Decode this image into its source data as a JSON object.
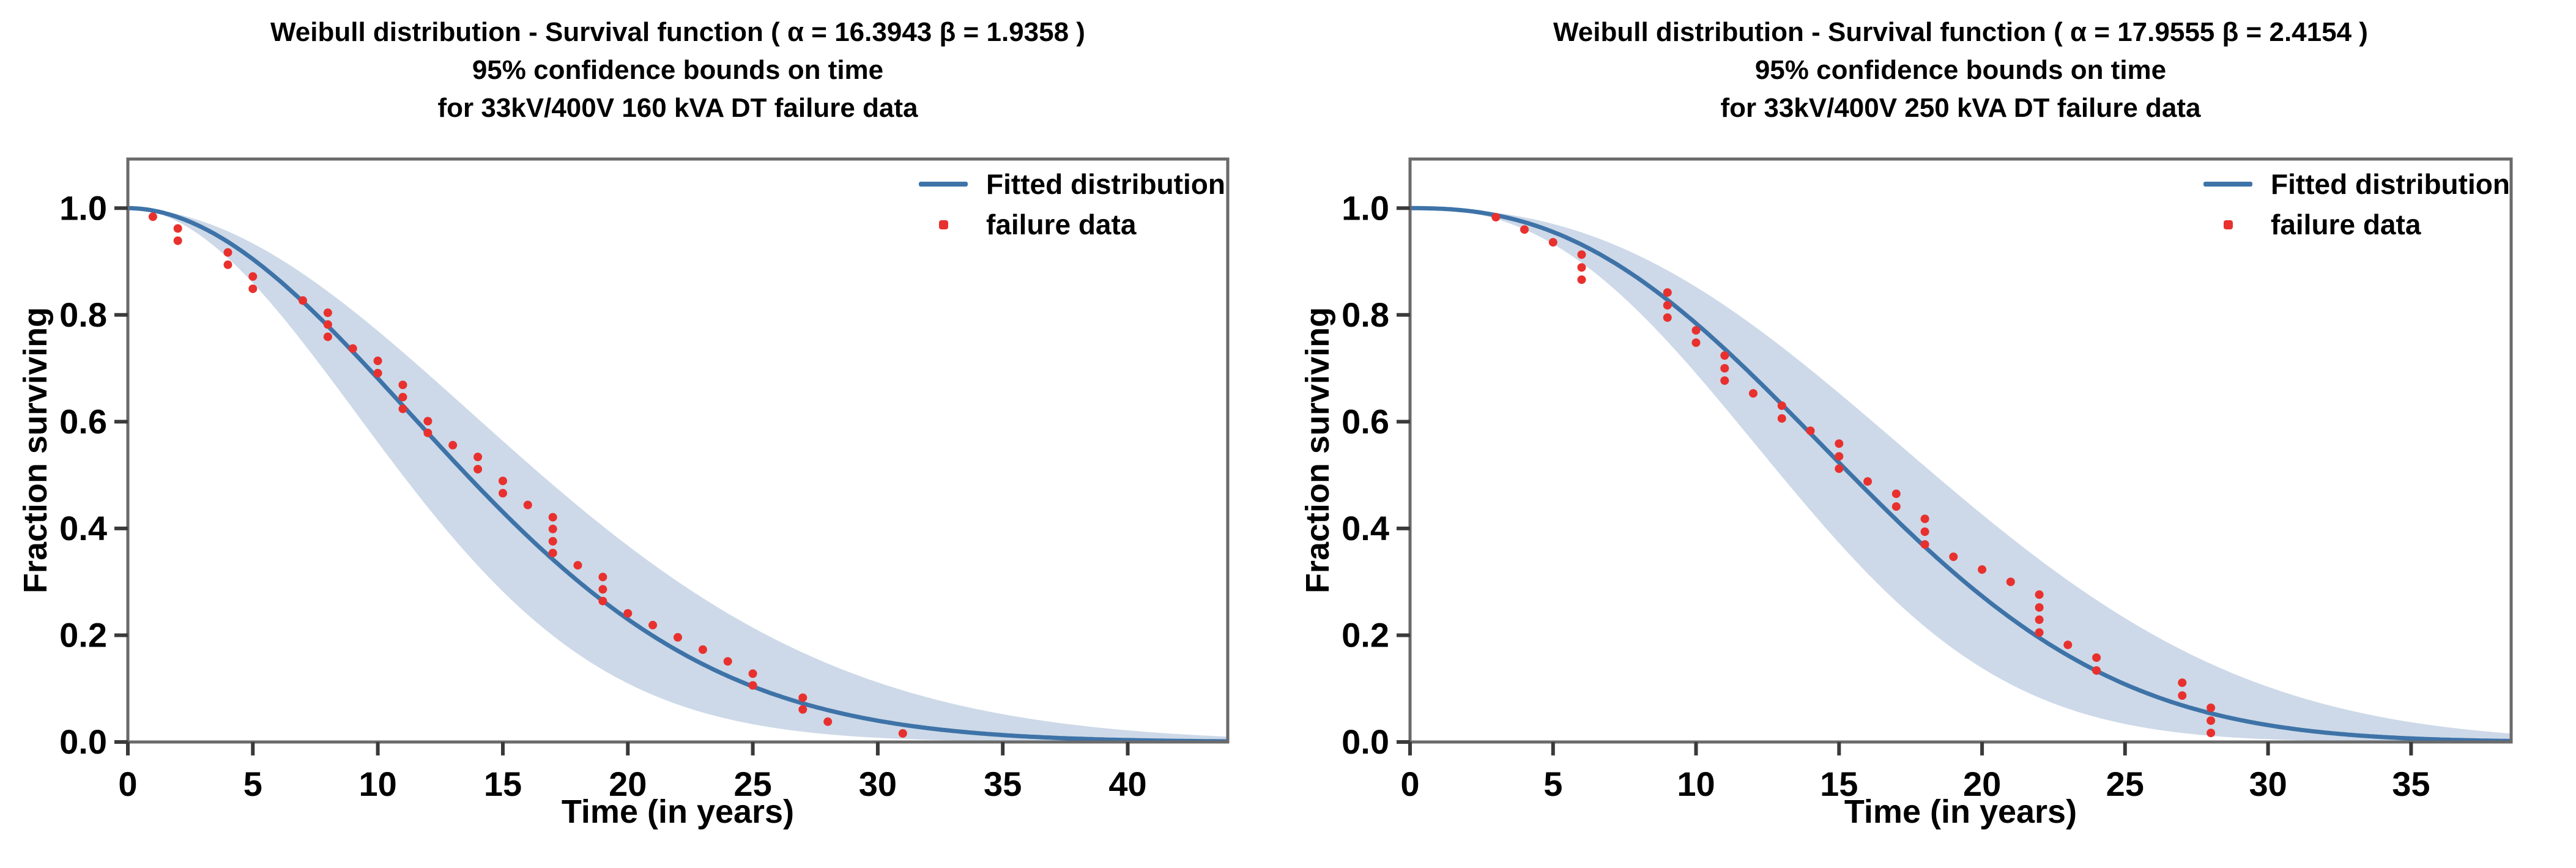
{
  "colors": {
    "fitted_line": "#3e73a8",
    "confidence_band": "#cdd9e8",
    "failure_marker": "#e8312e",
    "spine": "#6a6a6a",
    "tick": "#3a3a3a",
    "text": "#000000",
    "background": "#ffffff"
  },
  "chart_data": [
    {
      "type": "line",
      "title_line1": "Weibull distribution - Survival function ( α = 16.3943  β = 1.9358 )",
      "title_line2": "95% confidence bounds on time",
      "title_line3": "for 33kV/400V 160 kVA DT failure data",
      "xlabel": "Time (in years)",
      "ylabel": "Fraction surviving",
      "legend": [
        "Fitted distribution",
        "failure data"
      ],
      "weibull_alpha": 16.3943,
      "weibull_beta": 1.9358,
      "confidence_band_time_factors": [
        0.81,
        1.22
      ],
      "xlim": [
        0,
        44
      ],
      "ylim": [
        0,
        1.092
      ],
      "grid": false,
      "legend_position": "upper right",
      "xticks": [
        0,
        5,
        10,
        15,
        20,
        25,
        30,
        35,
        40
      ],
      "ytick_labels": [
        "1.0",
        "0.8",
        "0.6",
        "0.4",
        "0.2",
        "0.0"
      ],
      "failure_data": {
        "t": [
          1,
          2,
          2,
          4,
          4,
          5,
          5,
          7,
          8,
          8,
          8,
          9,
          10,
          10,
          11,
          11,
          11,
          12,
          12,
          13,
          14,
          14,
          15,
          15,
          16,
          17,
          17,
          17,
          17,
          18,
          19,
          19,
          19,
          20,
          21,
          22,
          23,
          24,
          25,
          25,
          27,
          27,
          28,
          31
        ],
        "fraction_surviving": [
          0.984,
          0.962,
          0.939,
          0.917,
          0.894,
          0.872,
          0.849,
          0.827,
          0.804,
          0.782,
          0.759,
          0.737,
          0.714,
          0.691,
          0.669,
          0.646,
          0.624,
          0.601,
          0.579,
          0.556,
          0.534,
          0.511,
          0.489,
          0.466,
          0.444,
          0.421,
          0.399,
          0.376,
          0.354,
          0.331,
          0.309,
          0.286,
          0.264,
          0.241,
          0.219,
          0.196,
          0.173,
          0.151,
          0.128,
          0.106,
          0.083,
          0.061,
          0.038,
          0.016
        ]
      }
    },
    {
      "type": "line",
      "title_line1": "Weibull distribution - Survival function ( α = 17.9555  β = 2.4154 )",
      "title_line2": "95% confidence bounds on time",
      "title_line3": "for 33kV/400V 250 kVA DT failure data",
      "xlabel": "Time (in years)",
      "ylabel": "Fraction surviving",
      "legend": [
        "Fitted distribution",
        "failure data"
      ],
      "weibull_alpha": 17.9555,
      "weibull_beta": 2.4154,
      "confidence_band_time_factors": [
        0.84,
        1.19
      ],
      "xlim": [
        0,
        38.5
      ],
      "ylim": [
        0,
        1.092
      ],
      "grid": false,
      "legend_position": "upper right",
      "xticks": [
        0,
        5,
        10,
        15,
        20,
        25,
        30,
        35
      ],
      "ytick_labels": [
        "1.0",
        "0.8",
        "0.6",
        "0.4",
        "0.2",
        "0.0"
      ],
      "failure_data": {
        "t": [
          3,
          4,
          5,
          6,
          6,
          6,
          9,
          9,
          9,
          10,
          10,
          11,
          11,
          11,
          12,
          13,
          13,
          14,
          15,
          15,
          15,
          16,
          17,
          17,
          18,
          18,
          18,
          19,
          20,
          21,
          22,
          22,
          22,
          22,
          23,
          24,
          24,
          27,
          27,
          28,
          28,
          28
        ],
        "fraction_surviving": [
          0.983,
          0.96,
          0.936,
          0.913,
          0.889,
          0.866,
          0.842,
          0.818,
          0.795,
          0.771,
          0.748,
          0.724,
          0.7,
          0.677,
          0.653,
          0.63,
          0.606,
          0.583,
          0.559,
          0.535,
          0.512,
          0.488,
          0.465,
          0.441,
          0.418,
          0.394,
          0.37,
          0.347,
          0.323,
          0.3,
          0.276,
          0.252,
          0.229,
          0.205,
          0.182,
          0.158,
          0.134,
          0.111,
          0.087,
          0.064,
          0.04,
          0.017
        ]
      }
    }
  ]
}
